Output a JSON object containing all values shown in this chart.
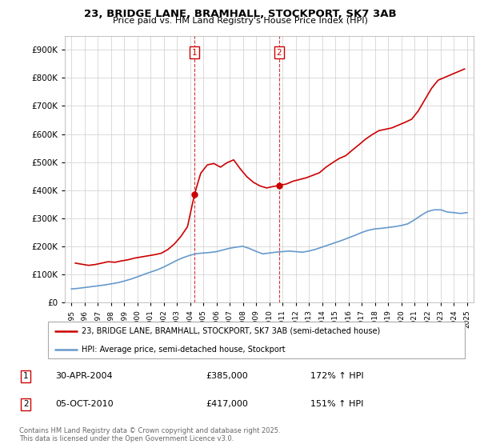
{
  "title": "23, BRIDGE LANE, BRAMHALL, STOCKPORT, SK7 3AB",
  "subtitle": "Price paid vs. HM Land Registry's House Price Index (HPI)",
  "legend_line1": "23, BRIDGE LANE, BRAMHALL, STOCKPORT, SK7 3AB (semi-detached house)",
  "legend_line2": "HPI: Average price, semi-detached house, Stockport",
  "annotation1_date": "30-APR-2004",
  "annotation1_price": "£385,000",
  "annotation1_hpi": "172% ↑ HPI",
  "annotation2_date": "05-OCT-2010",
  "annotation2_price": "£417,000",
  "annotation2_hpi": "151% ↑ HPI",
  "footer": "Contains HM Land Registry data © Crown copyright and database right 2025.\nThis data is licensed under the Open Government Licence v3.0.",
  "red_color": "#cc0000",
  "blue_color": "#6699cc",
  "grid_color": "#cccccc",
  "ann_color": "#cc0000",
  "bg_color": "#ffffff",
  "ylim": [
    0,
    950000
  ],
  "yticks": [
    0,
    100000,
    200000,
    300000,
    400000,
    500000,
    600000,
    700000,
    800000,
    900000
  ],
  "xlim": [
    1994.5,
    2025.5
  ],
  "red_years": [
    1995.3,
    1995.8,
    1996.3,
    1996.8,
    1997.3,
    1997.8,
    1998.3,
    1998.8,
    1999.3,
    1999.8,
    2000.3,
    2000.8,
    2001.3,
    2001.8,
    2002.3,
    2002.8,
    2003.3,
    2003.8,
    2004.33,
    2004.8,
    2005.3,
    2005.8,
    2006.3,
    2006.8,
    2007.3,
    2007.8,
    2008.3,
    2008.8,
    2009.3,
    2009.8,
    2010.3,
    2010.75,
    2011.3,
    2011.8,
    2012.3,
    2012.8,
    2013.3,
    2013.8,
    2014.3,
    2014.8,
    2015.3,
    2015.8,
    2016.3,
    2016.8,
    2017.3,
    2017.8,
    2018.3,
    2018.8,
    2019.3,
    2019.8,
    2020.3,
    2020.8,
    2021.3,
    2021.8,
    2022.3,
    2022.8,
    2023.3,
    2023.8,
    2024.3,
    2024.8
  ],
  "red_vals": [
    140000,
    136000,
    132000,
    135000,
    140000,
    145000,
    143000,
    148000,
    152000,
    158000,
    162000,
    166000,
    170000,
    175000,
    188000,
    208000,
    235000,
    270000,
    385000,
    460000,
    490000,
    495000,
    482000,
    498000,
    508000,
    476000,
    448000,
    428000,
    415000,
    408000,
    413000,
    417000,
    422000,
    432000,
    438000,
    444000,
    453000,
    462000,
    482000,
    498000,
    513000,
    523000,
    543000,
    562000,
    582000,
    598000,
    612000,
    617000,
    622000,
    632000,
    642000,
    653000,
    683000,
    723000,
    763000,
    792000,
    802000,
    812000,
    822000,
    832000
  ],
  "blue_years": [
    1995.0,
    1995.5,
    1996.0,
    1996.5,
    1997.0,
    1997.5,
    1998.0,
    1998.5,
    1999.0,
    1999.5,
    2000.0,
    2000.5,
    2001.0,
    2001.5,
    2002.0,
    2002.5,
    2003.0,
    2003.5,
    2004.0,
    2004.5,
    2005.0,
    2005.5,
    2006.0,
    2006.5,
    2007.0,
    2007.5,
    2008.0,
    2008.5,
    2009.0,
    2009.5,
    2010.0,
    2010.5,
    2011.0,
    2011.5,
    2012.0,
    2012.5,
    2013.0,
    2013.5,
    2014.0,
    2014.5,
    2015.0,
    2015.5,
    2016.0,
    2016.5,
    2017.0,
    2017.5,
    2018.0,
    2018.5,
    2019.0,
    2019.5,
    2020.0,
    2020.5,
    2021.0,
    2021.5,
    2022.0,
    2022.5,
    2023.0,
    2023.5,
    2024.0,
    2024.5,
    2025.0
  ],
  "blue_vals": [
    48000,
    50000,
    53000,
    56000,
    59000,
    62000,
    66000,
    70000,
    76000,
    83000,
    91000,
    100000,
    108000,
    116000,
    126000,
    138000,
    150000,
    160000,
    168000,
    174000,
    176000,
    178000,
    181000,
    187000,
    193000,
    197000,
    200000,
    192000,
    182000,
    173000,
    176000,
    179000,
    181000,
    183000,
    181000,
    179000,
    183000,
    189000,
    197000,
    205000,
    213000,
    221000,
    230000,
    239000,
    249000,
    257000,
    262000,
    264000,
    267000,
    270000,
    274000,
    280000,
    294000,
    310000,
    324000,
    330000,
    330000,
    322000,
    320000,
    317000,
    320000
  ],
  "marker1_x": 2004.33,
  "marker1_y": 385000,
  "marker2_x": 2010.75,
  "marker2_y": 417000,
  "vline1_x": 2004.33,
  "vline2_x": 2010.75
}
